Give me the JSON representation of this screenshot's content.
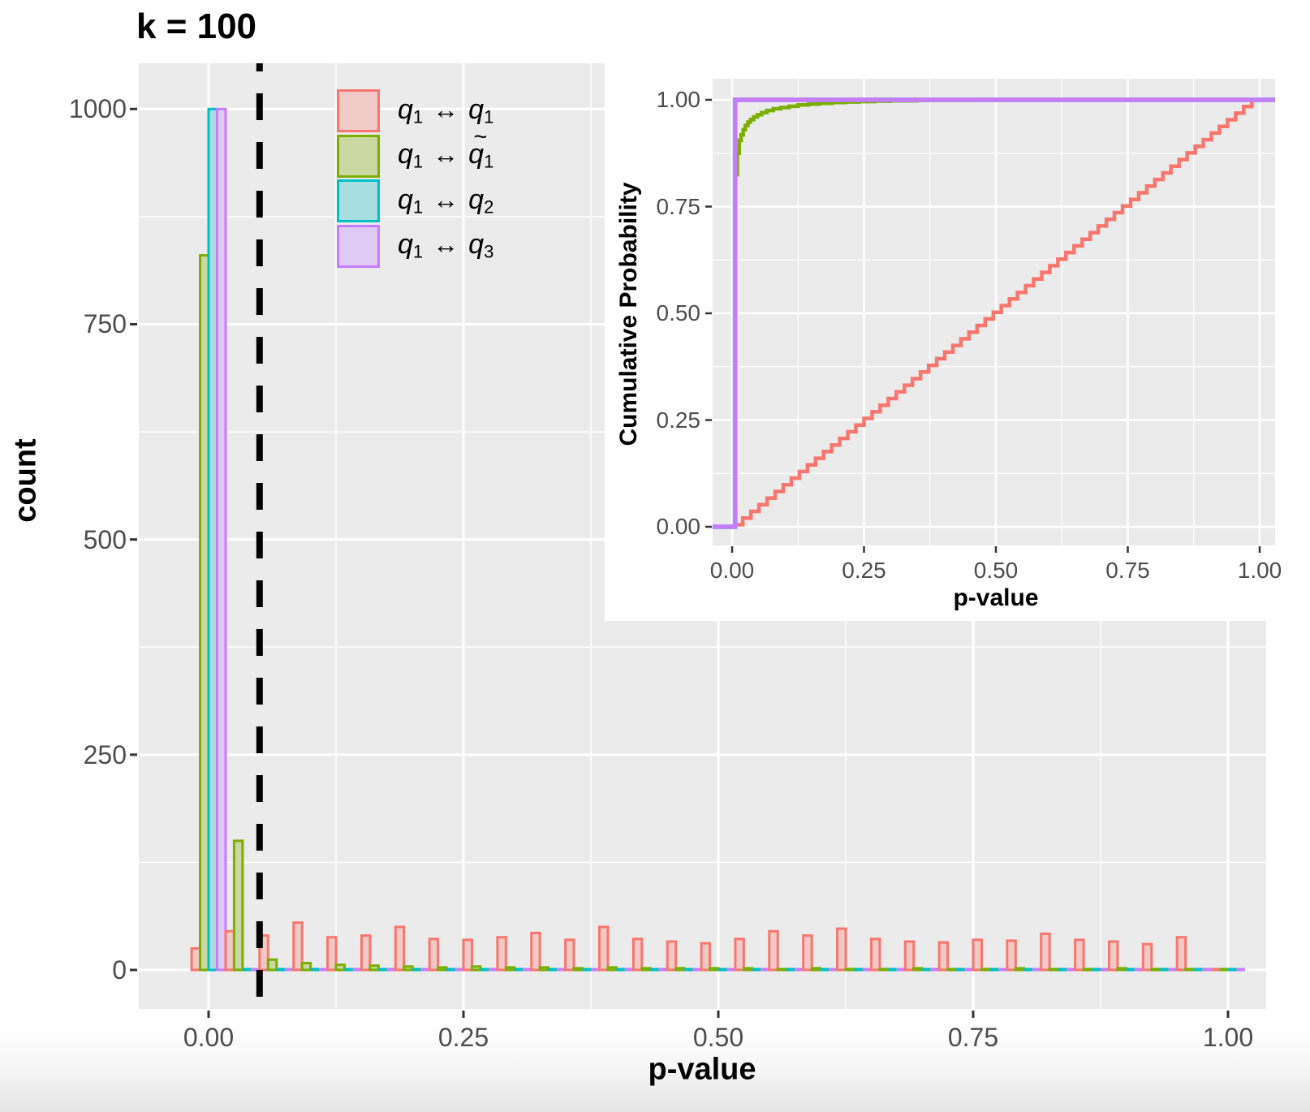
{
  "title": "k = 100",
  "colors": {
    "red": "#F8766D",
    "green": "#7CAE00",
    "teal": "#00BFC4",
    "purple": "#C77CFF",
    "red_fill": "#F1C9C6",
    "green_fill": "#CBD8A3",
    "teal_fill": "#A9DEE0",
    "purple_fill": "#DECBF5",
    "panel_bg": "#EBEBEB",
    "grid": "#FFFFFF",
    "tick_text": "#4D4D4D",
    "tick_mark": "#333333",
    "vline": "#000000"
  },
  "legend": {
    "items": [
      {
        "id": "q1-q1",
        "color": "red",
        "lhs": "q",
        "lhs_sub": "1",
        "arrow": "↔",
        "rhs": "q",
        "rhs_sub": "1",
        "rhs_tilde": false
      },
      {
        "id": "q1-q1tilde",
        "color": "green",
        "lhs": "q",
        "lhs_sub": "1",
        "arrow": "↔",
        "rhs": "q",
        "rhs_sub": "1",
        "rhs_tilde": true
      },
      {
        "id": "q1-q2",
        "color": "teal",
        "lhs": "q",
        "lhs_sub": "1",
        "arrow": "↔",
        "rhs": "q",
        "rhs_sub": "2",
        "rhs_tilde": false
      },
      {
        "id": "q1-q3",
        "color": "purple",
        "lhs": "q",
        "lhs_sub": "1",
        "arrow": "↔",
        "rhs": "q",
        "rhs_sub": "3",
        "rhs_tilde": false
      }
    ]
  },
  "chart_data": {
    "main": {
      "type": "bar",
      "subtype": "dodged-histogram",
      "title": "k = 100",
      "xlabel": "p-value",
      "ylabel": "count",
      "x_tick_labels": [
        "0.00",
        "0.25",
        "0.50",
        "0.75",
        "1.00"
      ],
      "x_tick_values": [
        0,
        0.25,
        0.5,
        0.75,
        1.0
      ],
      "x_minor_values": [
        0.125,
        0.375,
        0.625,
        0.875
      ],
      "y_tick_labels": [
        "0",
        "250",
        "500",
        "750",
        "1000"
      ],
      "y_tick_values": [
        0,
        250,
        500,
        750,
        1000
      ],
      "y_minor_values": [
        125,
        375,
        625,
        875
      ],
      "xlim": [
        -0.0685,
        1.0375
      ],
      "ylim": [
        -45,
        1053
      ],
      "grid": true,
      "legend_position": "inside-top-left",
      "vline_x": 0.05,
      "bin_start": 0,
      "bin_step": 0.033333,
      "n_bins": 31,
      "series": [
        {
          "name": "q1 ↔ q1",
          "color": "red",
          "values": [
            25,
            45,
            40,
            55,
            38,
            40,
            50,
            36,
            35,
            38,
            43,
            35,
            50,
            36,
            33,
            31,
            36,
            45,
            40,
            48,
            36,
            33,
            32,
            35,
            34,
            42,
            35,
            33,
            30,
            38,
            0
          ]
        },
        {
          "name": "q1 ↔ q̃1",
          "color": "green",
          "values": [
            830,
            150,
            12,
            8,
            6,
            5,
            4,
            3,
            4,
            3,
            3,
            2,
            3,
            2,
            2,
            2,
            2,
            1,
            2,
            1,
            1,
            2,
            1,
            1,
            2,
            1,
            1,
            2,
            1,
            1,
            0
          ]
        },
        {
          "name": "q1 ↔ q2",
          "color": "teal",
          "values": [
            1000,
            0,
            0,
            0,
            0,
            0,
            0,
            0,
            0,
            0,
            0,
            0,
            0,
            0,
            0,
            0,
            0,
            0,
            0,
            0,
            0,
            0,
            0,
            0,
            0,
            0,
            0,
            0,
            0,
            0,
            0
          ]
        },
        {
          "name": "q1 ↔ q3",
          "color": "purple",
          "values": [
            1000,
            0,
            0,
            0,
            0,
            0,
            0,
            0,
            0,
            0,
            0,
            0,
            0,
            0,
            0,
            0,
            0,
            0,
            0,
            0,
            0,
            0,
            0,
            0,
            0,
            0,
            0,
            0,
            0,
            0,
            0
          ]
        }
      ]
    },
    "inset": {
      "type": "line",
      "subtype": "ecdf",
      "xlabel": "p-value",
      "ylabel": "Cumulative Probability",
      "x_tick_labels": [
        "0.00",
        "0.25",
        "0.50",
        "0.75",
        "1.00"
      ],
      "x_tick_values": [
        0,
        0.25,
        0.5,
        0.75,
        1.0
      ],
      "x_minor_values": [
        0.125,
        0.375,
        0.625,
        0.875
      ],
      "y_tick_labels": [
        "0.00",
        "0.25",
        "0.50",
        "0.75",
        "1.00"
      ],
      "y_tick_values": [
        0,
        0.25,
        0.5,
        0.75,
        1.0
      ],
      "y_minor_values": [
        0.125,
        0.375,
        0.625,
        0.875
      ],
      "xlim": [
        -0.037,
        1.029
      ],
      "ylim": [
        -0.044,
        1.049
      ],
      "grid": true,
      "series": [
        {
          "name": "q1 ↔ q1",
          "color": "red",
          "kind": "staircase",
          "width": 4.5,
          "from": [
            0.005,
            0.005
          ],
          "to": [
            0.985,
            1.0
          ],
          "steps": 64,
          "tail_x": 1.0
        },
        {
          "name": "q1 ↔ q̃1",
          "color": "green",
          "kind": "steps",
          "width": 4.5,
          "points": [
            [
              0.0065,
              0.0
            ],
            [
              0.0065,
              0.825
            ],
            [
              0.01,
              0.875
            ],
            [
              0.0135,
              0.905
            ],
            [
              0.017,
              0.918
            ],
            [
              0.021,
              0.93
            ],
            [
              0.025,
              0.94
            ],
            [
              0.03,
              0.948
            ],
            [
              0.035,
              0.954
            ],
            [
              0.041,
              0.96
            ],
            [
              0.048,
              0.965
            ],
            [
              0.056,
              0.97
            ],
            [
              0.066,
              0.975
            ],
            [
              0.078,
              0.979
            ],
            [
              0.092,
              0.982
            ],
            [
              0.108,
              0.985
            ],
            [
              0.125,
              0.988
            ],
            [
              0.145,
              0.99
            ],
            [
              0.165,
              0.992
            ],
            [
              0.19,
              0.994
            ],
            [
              0.215,
              0.995
            ],
            [
              0.24,
              0.996
            ],
            [
              0.27,
              0.997
            ],
            [
              0.3,
              0.998
            ],
            [
              0.35,
              0.999
            ],
            [
              0.45,
              0.9995
            ],
            [
              0.6,
              1.0
            ],
            [
              1.029,
              1.0
            ]
          ]
        },
        {
          "name": "q1 ↔ q2",
          "color": "teal",
          "kind": "steps",
          "width": 5.5,
          "points": [
            [
              -0.037,
              0
            ],
            [
              0.0055,
              0
            ],
            [
              0.0055,
              1.0
            ],
            [
              1.029,
              1.0
            ]
          ]
        },
        {
          "name": "q1 ↔ q3",
          "color": "purple",
          "kind": "steps",
          "width": 5.5,
          "points": [
            [
              -0.037,
              0
            ],
            [
              0.0055,
              0
            ],
            [
              0.0055,
              1.0
            ],
            [
              1.029,
              1.0
            ]
          ]
        }
      ]
    }
  }
}
